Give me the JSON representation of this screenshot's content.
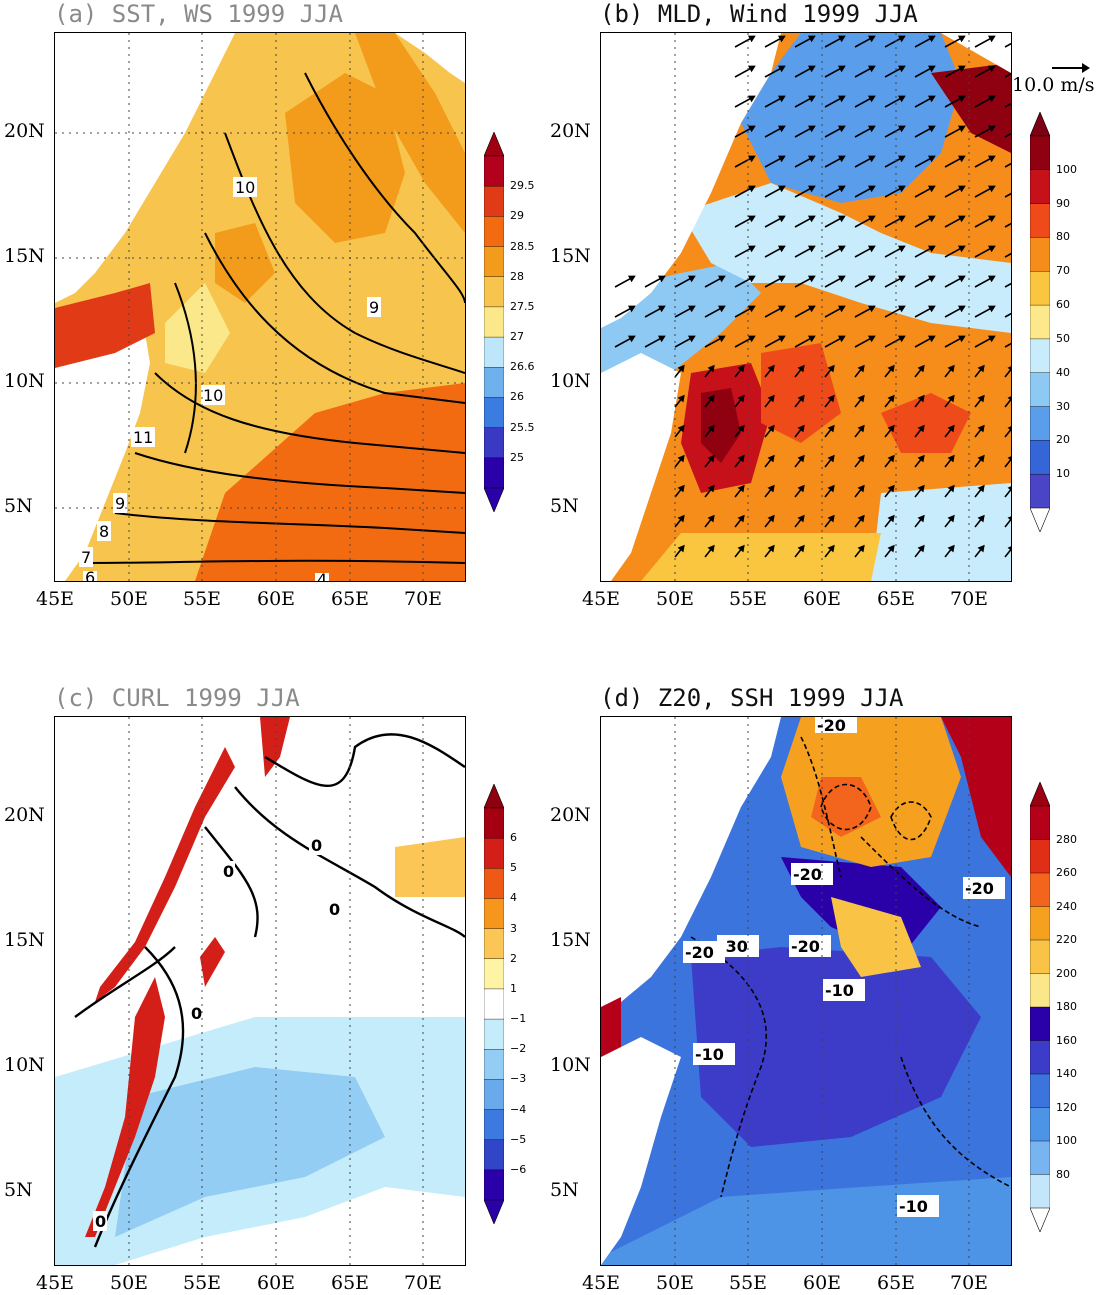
{
  "panels": [
    {
      "id": "a",
      "title": "(a) SST, WS 1999 JJA",
      "title_style": "light",
      "colorbar": {
        "labels": [
          "29.5",
          "29",
          "28.5",
          "28",
          "27.5",
          "27",
          "26.6",
          "26",
          "25.5",
          "25"
        ],
        "colors": [
          "#b2001d",
          "#e03a16",
          "#f26b10",
          "#f39c1c",
          "#f7c54e",
          "#fbe88a",
          "#bde6fa",
          "#6fb1ec",
          "#3b7ce0",
          "#3a39c4",
          "#2a00a8"
        ],
        "top_triangle": "#a00012",
        "bottom_triangle": "#2a00a8"
      },
      "contour_labels": [
        "10",
        "9",
        "10",
        "11",
        "9",
        "8",
        "7",
        "6",
        "4"
      ]
    },
    {
      "id": "b",
      "title": "(b) MLD, Wind 1999 JJA",
      "title_style": "dark",
      "colorbar": {
        "labels": [
          "100",
          "90",
          "80",
          "70",
          "60",
          "50",
          "40",
          "30",
          "20",
          "10"
        ],
        "colors": [
          "#8f0010",
          "#c6101a",
          "#ef4a1a",
          "#f68c1a",
          "#fac63f",
          "#fde98c",
          "#c8ecfb",
          "#8ec9f3",
          "#5a9deb",
          "#3466d8",
          "#4a44c6"
        ],
        "top_triangle": "#7c0012",
        "bottom_triangle": "#ffffff"
      },
      "vector_reference": "10.0 m/s"
    },
    {
      "id": "c",
      "title": "(c) CURL 1999 JJA",
      "title_style": "light",
      "colorbar": {
        "labels": [
          "6",
          "5",
          "4",
          "3",
          "2",
          "1",
          "−1",
          "−2",
          "−3",
          "−4",
          "−5",
          "−6"
        ],
        "colors": [
          "#a40012",
          "#d41f19",
          "#ee5a16",
          "#f6961d",
          "#fbc655",
          "#fff3a6",
          "#ffffff",
          "#c5ecfb",
          "#93cdf3",
          "#6aaaec",
          "#3c7ae0",
          "#3046c6",
          "#2a00a8"
        ],
        "top_triangle": "#8e0010",
        "bottom_triangle": "#2a00a8"
      },
      "contour_labels": [
        "0",
        "0",
        "0",
        "0",
        "0"
      ]
    },
    {
      "id": "d",
      "title": "(d) Z20, SSH 1999 JJA",
      "title_style": "dark",
      "colorbar": {
        "labels": [
          "280",
          "260",
          "240",
          "220",
          "200",
          "180",
          "160",
          "140",
          "120",
          "100",
          "80"
        ],
        "colors": [
          "#b5001a",
          "#e12e17",
          "#f3641c",
          "#f6a020",
          "#f9c346",
          "#fce68a",
          "#2a00a8",
          "#3d3cc8",
          "#3a74dc",
          "#4d93e6",
          "#78b4ef",
          "#c4e6fa"
        ],
        "top_triangle": "#9a0012",
        "bottom_triangle": "#ffffff"
      },
      "contour_labels": [
        "-20",
        "-20",
        "-20",
        "-30",
        "-20",
        "-20",
        "-10",
        "-10",
        "-10"
      ]
    }
  ],
  "axes": {
    "x_ticks": [
      "45E",
      "50E",
      "55E",
      "60E",
      "65E",
      "70E"
    ],
    "y_ticks": [
      "20N",
      "15N",
      "10N",
      "5N"
    ]
  }
}
